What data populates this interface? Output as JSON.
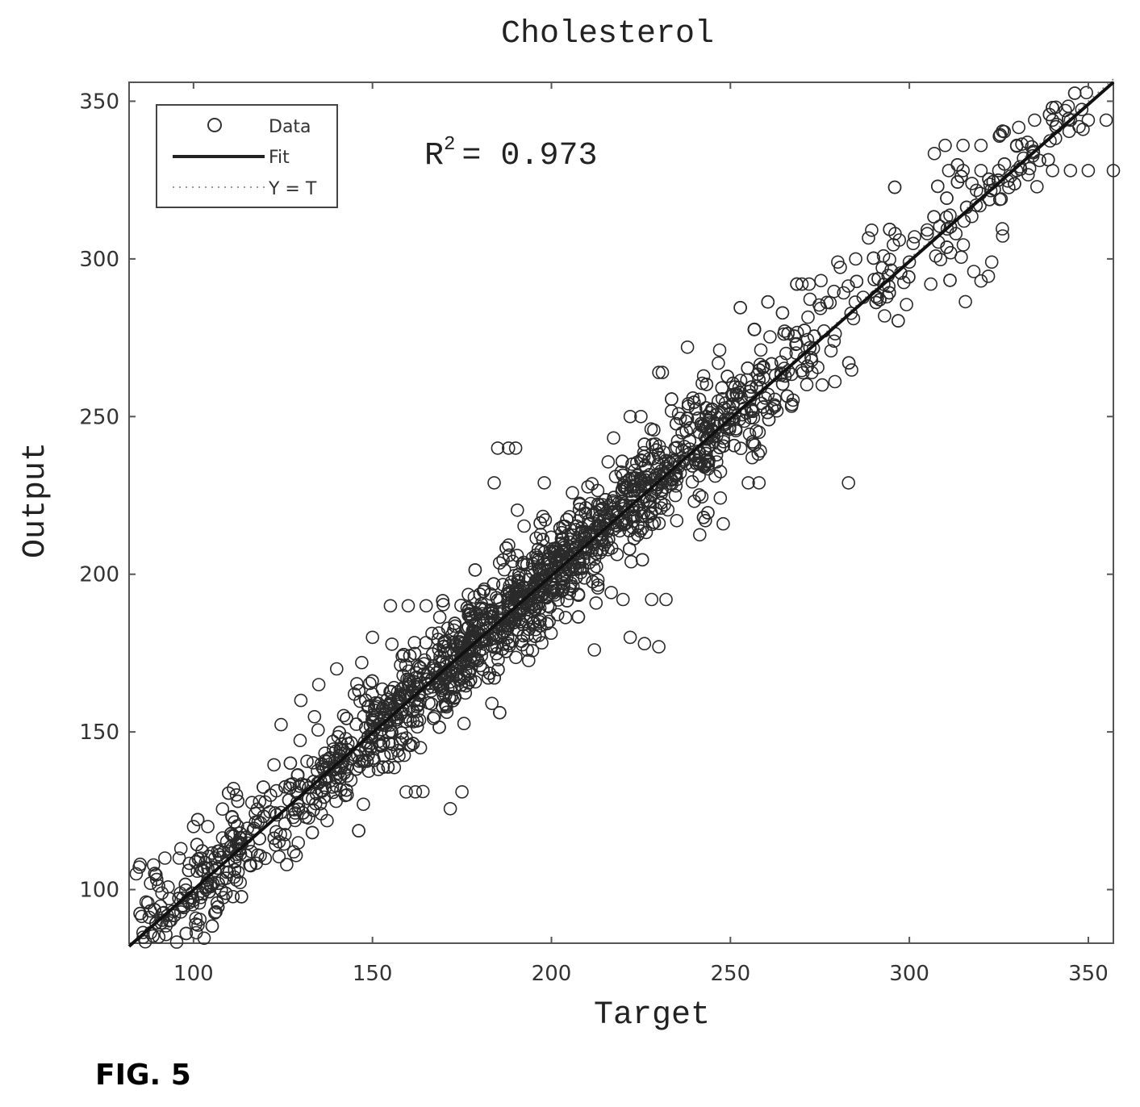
{
  "figure_label": "FIG. 5",
  "chart_data": {
    "type": "scatter",
    "title": "Cholesterol",
    "xlabel": "Target",
    "ylabel": "Output",
    "xlim": [
      82,
      357
    ],
    "ylim": [
      83,
      356
    ],
    "xticks": [
      100,
      150,
      200,
      250,
      300,
      350
    ],
    "yticks": [
      100,
      150,
      200,
      250,
      300,
      350
    ],
    "grid": false,
    "legend": {
      "position": "top-left",
      "entries": [
        {
          "label": "Data",
          "style": "circle"
        },
        {
          "label": "Fit",
          "style": "solid-line"
        },
        {
          "label": "Y = T",
          "style": "dotted-line"
        }
      ]
    },
    "annotation": {
      "text": "R",
      "superscript": "2",
      "rest": "= 0.973"
    },
    "fit_line": {
      "x": [
        82,
        357
      ],
      "y": [
        82,
        356
      ]
    },
    "identity_line": {
      "x": [
        82,
        357
      ],
      "y": [
        82,
        357
      ]
    },
    "outliers": [
      [
        100,
        120
      ],
      [
        104,
        120
      ],
      [
        112,
        130
      ],
      [
        128,
        112
      ],
      [
        130,
        160
      ],
      [
        135,
        165
      ],
      [
        140,
        170
      ],
      [
        147,
        172
      ],
      [
        150,
        180
      ],
      [
        162,
        131
      ],
      [
        175,
        131
      ],
      [
        185,
        240
      ],
      [
        188,
        240
      ],
      [
        190,
        240
      ],
      [
        198,
        229
      ],
      [
        184,
        229
      ],
      [
        155,
        190
      ],
      [
        160,
        190
      ],
      [
        165,
        190
      ],
      [
        212,
        176
      ],
      [
        222,
        180
      ],
      [
        226,
        178
      ],
      [
        230,
        177
      ],
      [
        232,
        192
      ],
      [
        228,
        192
      ],
      [
        220,
        192
      ],
      [
        235,
        217
      ],
      [
        243,
        217
      ],
      [
        248,
        216
      ],
      [
        255,
        229
      ],
      [
        258,
        229
      ],
      [
        283,
        229
      ],
      [
        230,
        264
      ],
      [
        231,
        264
      ],
      [
        222,
        250
      ],
      [
        225,
        250
      ],
      [
        238,
        272
      ],
      [
        270,
        292
      ],
      [
        272,
        292
      ],
      [
        280,
        299
      ],
      [
        285,
        300
      ],
      [
        300,
        299
      ],
      [
        318,
        296
      ],
      [
        320,
        293
      ],
      [
        323,
        299
      ],
      [
        306,
        292
      ],
      [
        313,
        308
      ],
      [
        296,
        308
      ],
      [
        305,
        308
      ],
      [
        310,
        336
      ],
      [
        315,
        336
      ],
      [
        320,
        336
      ],
      [
        330,
        336
      ],
      [
        333,
        337
      ],
      [
        340,
        328
      ],
      [
        345,
        328
      ],
      [
        350,
        328
      ],
      [
        357,
        328
      ],
      [
        335,
        344
      ],
      [
        340,
        344
      ],
      [
        345,
        344
      ],
      [
        350,
        344
      ],
      [
        355,
        344
      ],
      [
        311,
        328
      ],
      [
        315,
        328
      ],
      [
        320,
        328
      ],
      [
        325,
        328
      ],
      [
        330,
        328
      ],
      [
        84,
        105
      ],
      [
        88,
        102
      ],
      [
        92,
        110
      ],
      [
        96,
        110
      ],
      [
        102,
        110
      ],
      [
        106,
        110
      ],
      [
        112,
        103
      ],
      [
        108,
        103
      ],
      [
        104,
        103
      ]
    ]
  }
}
